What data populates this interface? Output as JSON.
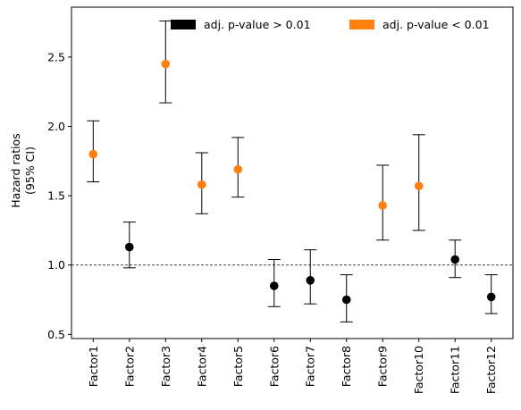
{
  "chart_data": {
    "type": "scatter",
    "title": "",
    "xlabel": "",
    "ylabel_lines": [
      "Hazard ratios",
      "(95% CI)"
    ],
    "categories": [
      "Factor1",
      "Factor2",
      "Factor3",
      "Factor4",
      "Factor5",
      "Factor6",
      "Factor7",
      "Factor8",
      "Factor9",
      "Factor10",
      "Factor11",
      "Factor12"
    ],
    "hazard_ratio": [
      1.8,
      1.13,
      2.45,
      1.58,
      1.69,
      0.85,
      0.89,
      0.75,
      1.43,
      1.57,
      1.04,
      0.77
    ],
    "ci_lower": [
      1.6,
      0.98,
      2.17,
      1.37,
      1.49,
      0.7,
      0.72,
      0.59,
      1.18,
      1.25,
      0.91,
      0.65
    ],
    "ci_upper": [
      2.04,
      1.31,
      2.76,
      1.81,
      1.92,
      1.04,
      1.11,
      0.93,
      1.72,
      1.94,
      1.18,
      0.93
    ],
    "significant": [
      true,
      false,
      true,
      true,
      true,
      false,
      false,
      false,
      true,
      true,
      false,
      false
    ],
    "yticks": [
      "0.5",
      "1.0",
      "1.5",
      "2.0",
      "2.5"
    ],
    "ylim": [
      0.47,
      2.86
    ],
    "reference_line": 1.0,
    "legend_position": "top-right",
    "legend": [
      {
        "label": "adj. p-value > 0.01",
        "color": "#000000"
      },
      {
        "label": "adj. p-value < 0.01",
        "color": "#ff7f0e"
      }
    ],
    "colors": {
      "significant": "#ff7f0e",
      "not_significant": "#000000"
    },
    "grid": false
  }
}
